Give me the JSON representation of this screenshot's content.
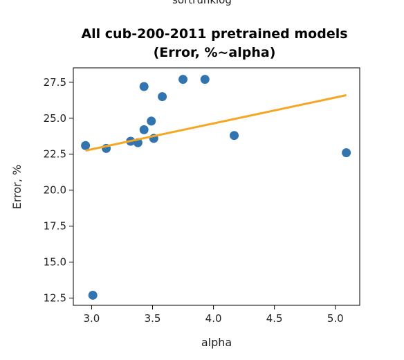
{
  "header": {
    "cut_label": "sortrunklog"
  },
  "chart_data": {
    "type": "scatter",
    "title": "All cub-200-2011 pretrained models",
    "subtitle": "(Error, %~alpha)",
    "xlabel": "alpha",
    "ylabel": "Error, %",
    "xlim": [
      2.85,
      5.2
    ],
    "ylim": [
      12.0,
      28.5
    ],
    "xticks": [
      3.0,
      3.5,
      4.0,
      4.5,
      5.0
    ],
    "xtick_labels": [
      "3.0",
      "3.5",
      "4.0",
      "4.5",
      "5.0"
    ],
    "yticks": [
      12.5,
      15.0,
      17.5,
      20.0,
      22.5,
      25.0,
      27.5
    ],
    "ytick_labels": [
      "12.5",
      "15.0",
      "17.5",
      "20.0",
      "22.5",
      "25.0",
      "27.5"
    ],
    "grid": false,
    "point_color": "#3274b0",
    "line_color": "#f5a623",
    "points": [
      {
        "x": 2.95,
        "y": 23.1
      },
      {
        "x": 3.01,
        "y": 12.7
      },
      {
        "x": 3.12,
        "y": 22.9
      },
      {
        "x": 3.32,
        "y": 23.4
      },
      {
        "x": 3.38,
        "y": 23.3
      },
      {
        "x": 3.43,
        "y": 24.2
      },
      {
        "x": 3.43,
        "y": 27.2
      },
      {
        "x": 3.49,
        "y": 24.8
      },
      {
        "x": 3.51,
        "y": 23.6
      },
      {
        "x": 3.58,
        "y": 26.5
      },
      {
        "x": 3.75,
        "y": 27.7
      },
      {
        "x": 3.93,
        "y": 27.7
      },
      {
        "x": 4.17,
        "y": 23.8
      },
      {
        "x": 5.09,
        "y": 22.6
      }
    ],
    "fit_line": {
      "x": [
        2.95,
        5.09
      ],
      "y": [
        22.75,
        26.6
      ]
    }
  }
}
